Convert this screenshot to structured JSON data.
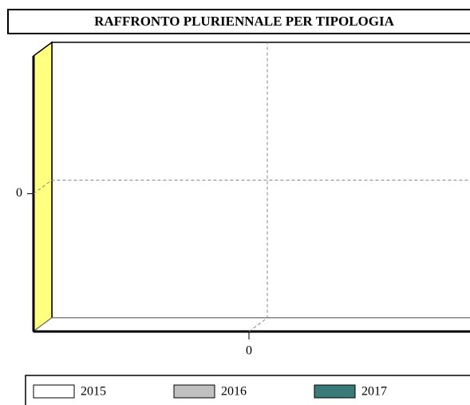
{
  "chart_data": {
    "type": "bar",
    "title": "RAFFRONTO PLURIENNALE PER TIPOLOGIA",
    "xlim": [
      -1,
      1
    ],
    "xticks": [
      0
    ],
    "ylim": [
      -1,
      1
    ],
    "yticks": [
      0
    ],
    "grid": true,
    "wall_color": "#ffff80",
    "series": [
      {
        "name": "2015",
        "color": "#ffffff",
        "values": []
      },
      {
        "name": "2016",
        "color": "#c0c0c0",
        "values": []
      },
      {
        "name": "2017",
        "color": "#3a7a78",
        "values": []
      }
    ]
  }
}
